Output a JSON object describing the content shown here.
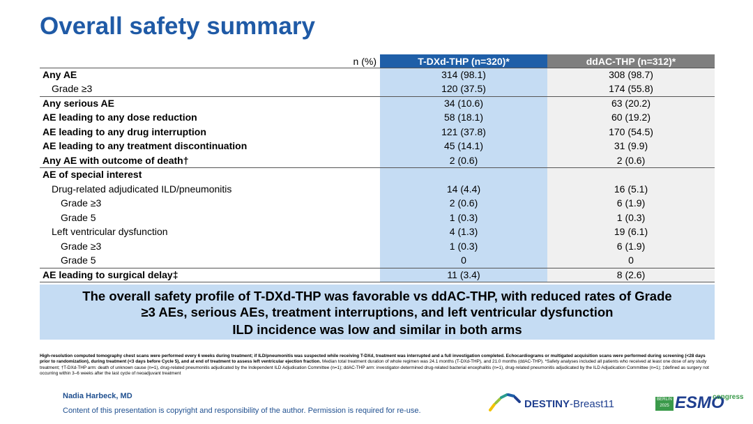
{
  "header": {
    "title": "Overall safety summary"
  },
  "table": {
    "columns": [
      "n (%)",
      "T-DXd-THP (n=320)*",
      "ddAC-THP (n=312)*"
    ],
    "rows": [
      [
        "Any AE",
        "314 (98.1)",
        "308 (98.7)"
      ],
      [
        "Grade ≥3",
        "120 (37.5)",
        "174 (55.8)"
      ],
      [
        "Any serious AE",
        "34 (10.6)",
        "63 (20.2)"
      ],
      [
        "AE leading to any dose reduction",
        "58 (18.1)",
        "60 (19.2)"
      ],
      [
        "AE leading to any drug interruption",
        "121 (37.8)",
        "170 (54.5)"
      ],
      [
        "AE leading to any treatment discontinuation",
        "45 (14.1)",
        "31 (9.9)"
      ],
      [
        "Any AE with outcome of death†",
        "2 (0.6)",
        "2 (0.6)"
      ],
      [
        "AE of special interest"
      ],
      [
        "Drug-related adjudicated ILD/pneumonitis",
        "14 (4.4)",
        "16 (5.1)"
      ],
      [
        "Grade ≥3",
        "2 (0.6)",
        "6 (1.9)"
      ],
      [
        "Grade 5",
        "1 (0.3)",
        "1 (0.3)"
      ],
      [
        "Left ventricular dysfunction",
        "4 (1.3)",
        "19 (6.1)"
      ],
      [
        "Grade ≥3",
        "1 (0.3)",
        "6 (1.9)"
      ],
      [
        "Grade 5",
        "0",
        "0"
      ],
      [
        "AE leading to surgical delay‡",
        "11 (3.4)",
        "8 (2.6)"
      ]
    ]
  },
  "callout": [
    "The overall safety profile of T-DXd-THP was favorable vs ddAC-THP, with reduced rates of Grade ≥3 AEs, serious AEs, treatment interruptions, and left ventricular dysfunction",
    "ILD incidence was low and similar in both arms"
  ],
  "footnote": {
    "bold": "High-resolution computed tomography chest scans were performed every 6 weeks during treatment; if ILD/pneumonitis was suspected while receiving T-DXd, treatment was interrupted and a full investigation completed. Echocardiograms or multigated acquisition scans were performed during screening (<28 days prior to randomization), during treatment (<3 days before Cycle 5), and at end of treatment to assess left ventricular ejection fraction.",
    "normal": " Median total treatment duration of whole regimen was 24.1 months (T-DXd-THP), and 21.0 months (ddAC-THP). *Safety analyses included all patients who received at least one dose of any study treatment; †T-DXd-THP arm: death of unknown cause (n=1), drug-related pneumonitis adjudicated by the Independent ILD Adjudication Committee (n=1); ddAC-THP arm: investigator-determined drug-related bacterial encephalitis (n=1), drug-related pneumonitis adjudicated by the ILD Adjudication Committee (n=1); ‡defined as surgery not occurring within 3–6 weeks after the last cycle of neoadjuvant treatment"
  },
  "footer": {
    "author": "Nadia Harbeck, MD",
    "copyright": "Content of this presentation is copyright and responsibility of the author. Permission is required for re-use.",
    "study_logo": [
      "DESTINY",
      "-Breast11"
    ],
    "congress_logo": [
      "BERLIN",
      "2025",
      "ESMO",
      "congress"
    ]
  }
}
